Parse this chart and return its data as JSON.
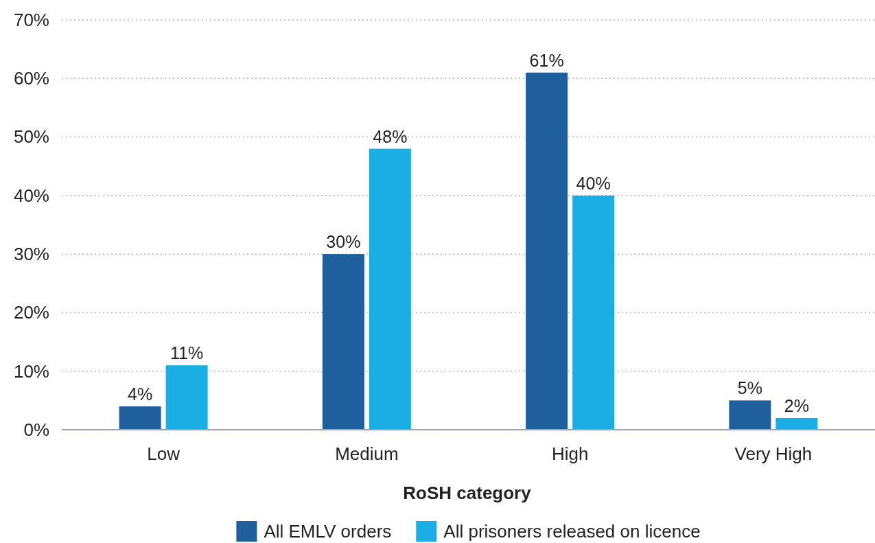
{
  "chart_data": {
    "type": "bar",
    "xlabel": "RoSH category",
    "categories": [
      "Low",
      "Medium",
      "High",
      "Very High"
    ],
    "series": [
      {
        "name": "All EMLV orders",
        "color": "#1f5f9e",
        "values": [
          4,
          30,
          61,
          5
        ],
        "value_labels": [
          "4%",
          "30%",
          "61%",
          "5%"
        ]
      },
      {
        "name": "All prisoners released on licence",
        "color": "#1aaee5",
        "values": [
          11,
          48,
          40,
          2
        ],
        "value_labels": [
          "11%",
          "48%",
          "40%",
          "2%"
        ]
      }
    ],
    "ylim": [
      0,
      70
    ],
    "yticks": [
      {
        "value": 0,
        "label": "0%"
      },
      {
        "value": 10,
        "label": "10%"
      },
      {
        "value": 20,
        "label": "20%"
      },
      {
        "value": 30,
        "label": "30%"
      },
      {
        "value": 40,
        "label": "40%"
      },
      {
        "value": 50,
        "label": "50%"
      },
      {
        "value": 60,
        "label": "60%"
      },
      {
        "value": 70,
        "label": "70%"
      }
    ],
    "grid": "y",
    "legend": "bottom"
  }
}
